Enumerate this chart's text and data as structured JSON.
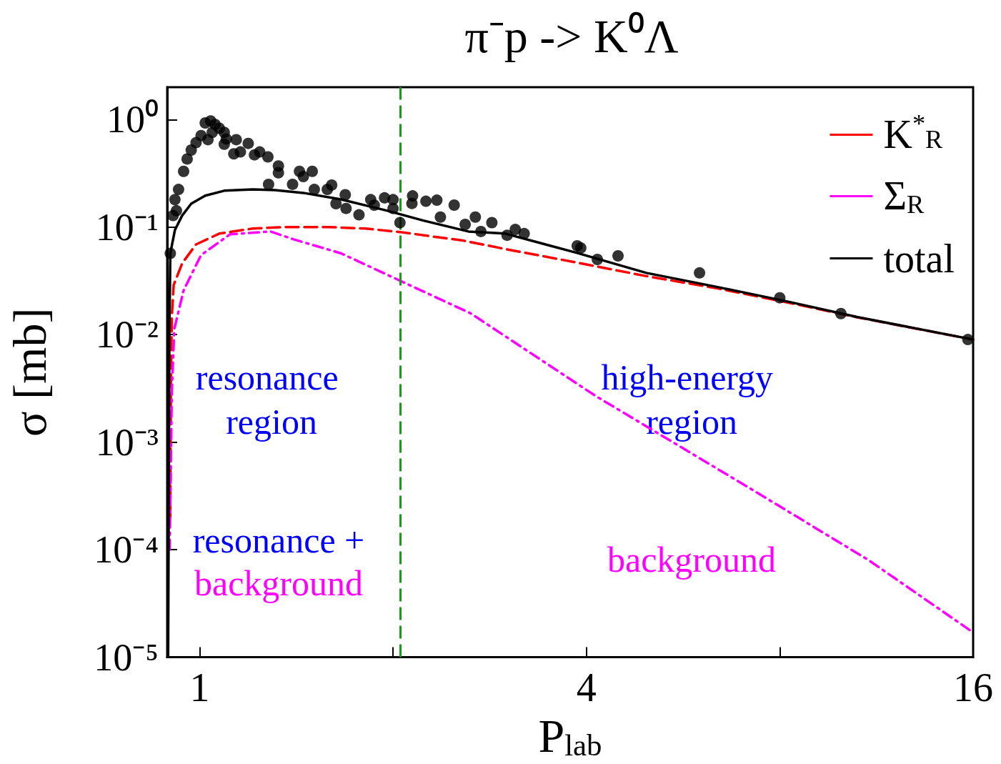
{
  "chart_data": {
    "type": "line",
    "title": "π⁻p -> K⁰Λ",
    "xlabel": "P$_{lab}$",
    "ylabel": "σ [mb]",
    "log": "xy",
    "xlim": [
      0.89,
      16
    ],
    "xticks": [
      1,
      {
        "value": 2,
        "label": null
      },
      4,
      {
        "value": 8,
        "label": null
      },
      16
    ],
    "ylim": [
      1e-05,
      2
    ],
    "yticks": [
      {
        "value": 1e-05,
        "label": "10⁻⁵"
      },
      {
        "value": 0.0001,
        "label": "10⁻⁴"
      },
      {
        "value": 0.001,
        "label": "10⁻³"
      },
      {
        "value": 0.01,
        "label": "10⁻²"
      },
      {
        "value": 0.1,
        "label": "10⁻¹"
      },
      {
        "value": 1,
        "label": "10⁰"
      }
    ],
    "grid": false,
    "legend": "top right",
    "annotations": [
      "resonance region",
      "resonance +",
      "background",
      "high-energy region",
      "background"
    ],
    "ref_lines": [
      {
        "axis": "x",
        "value": 2.05,
        "color": "#1a9a1a",
        "line_style": "dashed"
      }
    ],
    "series": [
      {
        "type": "scatter",
        "marker": "circle",
        "color": "#000000",
        "x": [
          0.9,
          0.909,
          0.92,
          0.915,
          0.927,
          0.944,
          0.956,
          0.97,
          0.987,
          1.005,
          1.02,
          1.04,
          1.057,
          1.073,
          1.03,
          1.046,
          1.092,
          1.092,
          1.1,
          1.13,
          1.14,
          1.157,
          1.19,
          1.217,
          1.24,
          1.277,
          1.326,
          1.326,
          1.28,
          1.395,
          1.43,
          1.497,
          1.45,
          1.508,
          1.58,
          1.605,
          1.63,
          1.685,
          1.69,
          1.77,
          1.846,
          1.87,
          1.94,
          2.0,
          2.0,
          2.05,
          2.145,
          2.14,
          2.25,
          2.34,
          2.37,
          2.49,
          2.59,
          2.686,
          2.74,
          2.85,
          3.01,
          3.1,
          3.2,
          3.87,
          3.92,
          4.16,
          4.48,
          6.0,
          8.0,
          9.96,
          15.7
        ],
        "values": [
          0.057,
          0.128,
          0.142,
          0.18,
          0.224,
          0.33,
          0.43,
          0.52,
          0.61,
          0.71,
          0.93,
          0.97,
          0.9,
          0.83,
          0.65,
          0.76,
          0.76,
          0.59,
          0.66,
          0.48,
          0.65,
          0.5,
          0.6,
          0.47,
          0.5,
          0.45,
          0.37,
          0.32,
          0.25,
          0.25,
          0.33,
          0.33,
          0.295,
          0.224,
          0.224,
          0.246,
          0.165,
          0.2,
          0.149,
          0.13,
          0.18,
          0.16,
          0.187,
          0.18,
          0.149,
          0.11,
          0.195,
          0.166,
          0.174,
          0.178,
          0.124,
          0.16,
          0.106,
          0.124,
          0.091,
          0.11,
          0.084,
          0.095,
          0.087,
          0.067,
          0.064,
          0.05,
          0.054,
          0.0375,
          0.022,
          0.0157,
          0.009
        ]
      },
      {
        "name": "K$^{*}$$_{R}$",
        "color": "#ff0000",
        "line_style": "dashed",
        "x": [
          0.9,
          0.902,
          0.905,
          0.911,
          0.939,
          0.987,
          1.073,
          1.21,
          1.36,
          1.59,
          1.81,
          2.05,
          2.33,
          2.57,
          2.99,
          3.85,
          4.96,
          6.38,
          8.2,
          10.55,
          16
        ],
        "values": [
          0.0002,
          0.004,
          0.015,
          0.029,
          0.046,
          0.069,
          0.087,
          0.097,
          0.1,
          0.1,
          0.097,
          0.09,
          0.081,
          0.075,
          0.0625,
          0.047,
          0.035,
          0.027,
          0.02,
          0.0145,
          0.009
        ]
      },
      {
        "name": "Σ$_{R}$",
        "color": "#ff00ff",
        "line_style": "dashdot",
        "x": [
          0.898,
          0.905,
          0.913,
          0.944,
          1.005,
          1.115,
          1.29,
          1.4,
          1.66,
          1.96,
          2.08,
          2.64,
          4.13,
          7.2,
          11.0,
          16
        ],
        "values": [
          0.0001,
          0.003,
          0.0113,
          0.0258,
          0.055,
          0.0857,
          0.091,
          0.077,
          0.057,
          0.036,
          0.0305,
          0.0158,
          0.0027,
          0.00037,
          8e-05,
          1.7e-05
        ]
      },
      {
        "name": "total",
        "color": "#000000",
        "line_style": "solid",
        "x": [
          0.893,
          0.897,
          0.9,
          0.915,
          0.939,
          0.97,
          1.02,
          1.092,
          1.21,
          1.31,
          1.45,
          1.66,
          1.96,
          2.23,
          2.62,
          2.99,
          3.85,
          4.96,
          6.38,
          8.2,
          10.55,
          16
        ],
        "values": [
          1e-05,
          0.01,
          0.057,
          0.094,
          0.128,
          0.165,
          0.196,
          0.218,
          0.224,
          0.221,
          0.208,
          0.181,
          0.142,
          0.115,
          0.091,
          0.087,
          0.058,
          0.0375,
          0.0278,
          0.0204,
          0.0146,
          0.009
        ]
      }
    ]
  }
}
